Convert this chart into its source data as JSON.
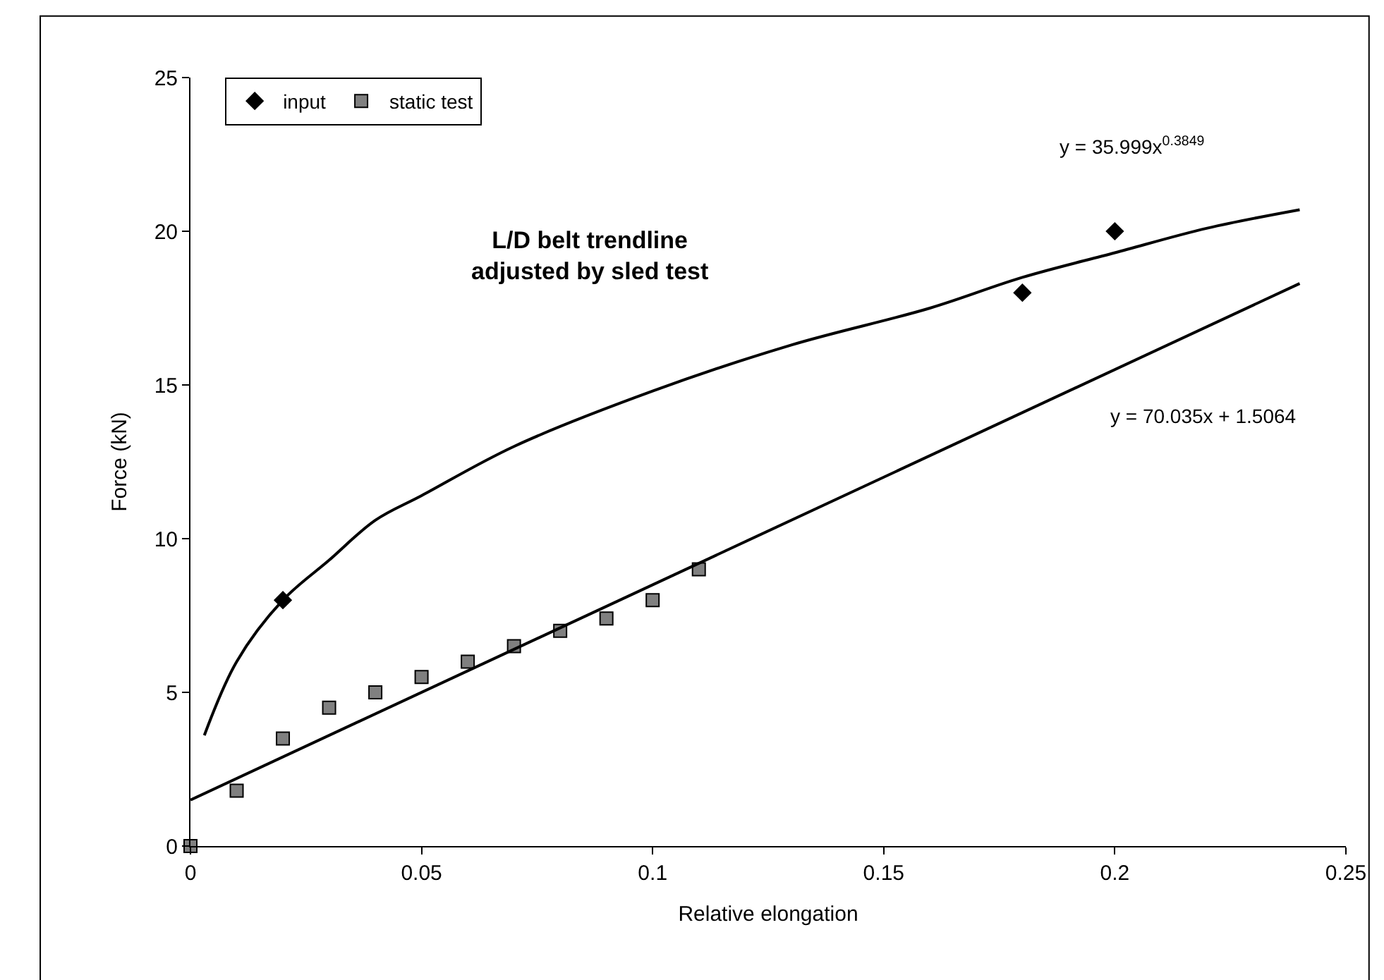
{
  "chart_data": {
    "type": "scatter",
    "xlabel": "Relative elongation",
    "ylabel": "Force (kN)",
    "xlim": [
      0,
      0.25
    ],
    "ylim": [
      0,
      25
    ],
    "xticks": [
      0,
      0.05,
      0.1,
      0.15,
      0.2,
      0.25
    ],
    "yticks": [
      0,
      5,
      10,
      15,
      20,
      25
    ],
    "legend": "top left",
    "series": [
      {
        "name": "input",
        "marker": "diamond",
        "color": "#000000",
        "x": [
          0.02,
          0.18,
          0.2
        ],
        "values": [
          8,
          18,
          20
        ]
      },
      {
        "name": "static test",
        "marker": "square",
        "color": "#808080",
        "x": [
          0,
          0.01,
          0.02,
          0.03,
          0.04,
          0.05,
          0.06,
          0.07,
          0.08,
          0.09,
          0.1,
          0.11
        ],
        "values": [
          0,
          1.8,
          3.5,
          4.5,
          5,
          5.5,
          6,
          6.5,
          7,
          7.4,
          8,
          9
        ]
      },
      {
        "type": "line",
        "marker": "none",
        "color": "#000000",
        "x": [
          0.003,
          0.01,
          0.02,
          0.03,
          0.04,
          0.05,
          0.07,
          0.1,
          0.13,
          0.16,
          0.18,
          0.2,
          0.22,
          0.24
        ],
        "values": [
          3.6,
          6,
          8,
          9.3,
          10.6,
          11.4,
          13,
          14.8,
          16.3,
          17.5,
          18.5,
          19.3,
          20.1,
          20.7
        ]
      },
      {
        "type": "line",
        "marker": "none",
        "color": "#000000",
        "x": [
          0,
          0.24
        ],
        "values": [
          1.5,
          18.3
        ]
      }
    ],
    "annotations": [
      "L/D belt trendline\nadjusted by sled test",
      "y = 35.999x$^{0.3849}$",
      "y = 70.035x + 1.5064"
    ]
  }
}
